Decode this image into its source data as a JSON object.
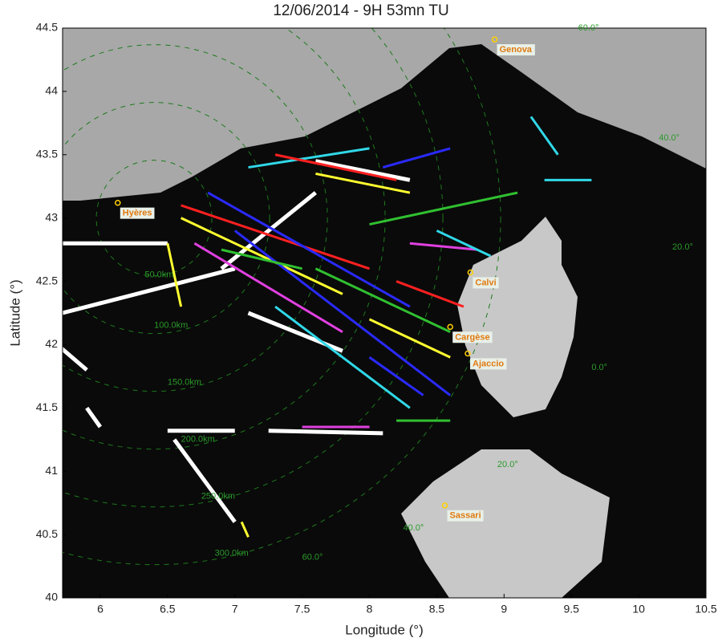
{
  "chart_data": {
    "type": "line",
    "title": "12/06/2014 -  9H 53mn TU",
    "x_label": "Longitude (°)",
    "y_label": "Latitude (°)",
    "xlim": [
      5.72,
      10.5
    ],
    "ylim": [
      40,
      44.5
    ],
    "xticks": [
      6,
      6.5,
      7,
      7.5,
      8,
      8.5,
      9,
      9.5,
      10,
      10.5
    ],
    "yticks": [
      40,
      40.5,
      41,
      41.5,
      42,
      42.5,
      43,
      43.5,
      44,
      44.5
    ],
    "cities": [
      {
        "name": "Genova",
        "x": 8.93,
        "y": 44.41
      },
      {
        "name": "Hyères",
        "x": 6.13,
        "y": 43.12
      },
      {
        "name": "Calvi",
        "x": 8.75,
        "y": 42.57
      },
      {
        "name": "Cargèse",
        "x": 8.6,
        "y": 42.14
      },
      {
        "name": "Ajaccio",
        "x": 8.73,
        "y": 41.93
      },
      {
        "name": "Sassari",
        "x": 8.56,
        "y": 40.73
      }
    ],
    "annotations": [
      {
        "text": "50.0km",
        "x": 6.33,
        "y": 42.55
      },
      {
        "text": "100.0km",
        "x": 6.4,
        "y": 42.15
      },
      {
        "text": "150.0km",
        "x": 6.5,
        "y": 41.7
      },
      {
        "text": "200.0km",
        "x": 6.6,
        "y": 41.25
      },
      {
        "text": "250.0km",
        "x": 6.75,
        "y": 40.8
      },
      {
        "text": "300.0km",
        "x": 6.85,
        "y": 40.35
      },
      {
        "text": "60.0°",
        "x": 7.5,
        "y": 40.32
      },
      {
        "text": "40.0°",
        "x": 8.25,
        "y": 40.55
      },
      {
        "text": "20.0°",
        "x": 8.95,
        "y": 41.05
      },
      {
        "text": "0.0°",
        "x": 9.65,
        "y": 41.82
      },
      {
        "text": "20.0°",
        "x": 10.25,
        "y": 42.77
      },
      {
        "text": "40.0°",
        "x": 10.15,
        "y": 43.63
      },
      {
        "text": "60.0°",
        "x": 9.55,
        "y": 44.5
      }
    ],
    "series": [
      {
        "color": "#ffffff",
        "x": [
          5.72,
          6.5
        ],
        "y": [
          42.8,
          42.8
        ]
      },
      {
        "color": "#ffffff",
        "x": [
          5.72,
          7.0
        ],
        "y": [
          42.25,
          42.6
        ]
      },
      {
        "color": "#ffffff",
        "x": [
          6.5,
          7.0
        ],
        "y": [
          41.32,
          41.32
        ]
      },
      {
        "color": "#ffffff",
        "x": [
          7.25,
          8.1
        ],
        "y": [
          41.32,
          41.3
        ]
      },
      {
        "color": "#ffffff",
        "x": [
          6.55,
          7.0
        ],
        "y": [
          41.25,
          40.6
        ]
      },
      {
        "color": "#ffffff",
        "x": [
          7.1,
          7.8
        ],
        "y": [
          42.25,
          41.95
        ]
      },
      {
        "color": "#ffffff",
        "x": [
          6.9,
          7.6
        ],
        "y": [
          42.6,
          43.2
        ]
      },
      {
        "color": "#ffffff",
        "x": [
          7.6,
          8.3
        ],
        "y": [
          43.45,
          43.3
        ]
      },
      {
        "color": "#ffffff",
        "x": [
          5.9,
          6.0
        ],
        "y": [
          41.5,
          41.35
        ]
      },
      {
        "color": "#ffffff",
        "x": [
          5.68,
          5.9
        ],
        "y": [
          42.0,
          41.8
        ]
      },
      {
        "color": "#ff2020",
        "x": [
          6.6,
          8.0
        ],
        "y": [
          43.1,
          42.6
        ]
      },
      {
        "color": "#2a2aff",
        "x": [
          6.8,
          8.3
        ],
        "y": [
          43.2,
          42.3
        ]
      },
      {
        "color": "#ffff30",
        "x": [
          6.6,
          7.8
        ],
        "y": [
          43.0,
          42.4
        ]
      },
      {
        "color": "#30d8e8",
        "x": [
          7.1,
          8.0
        ],
        "y": [
          43.4,
          43.55
        ]
      },
      {
        "color": "#30c030",
        "x": [
          8.0,
          9.1
        ],
        "y": [
          42.95,
          43.2
        ]
      },
      {
        "color": "#e040e0",
        "x": [
          6.7,
          7.8
        ],
        "y": [
          42.8,
          42.1
        ]
      },
      {
        "color": "#2a2aff",
        "x": [
          7.0,
          8.6
        ],
        "y": [
          42.9,
          41.6
        ]
      },
      {
        "color": "#30d8e8",
        "x": [
          7.3,
          8.3
        ],
        "y": [
          42.3,
          41.5
        ]
      },
      {
        "color": "#ffff30",
        "x": [
          6.5,
          6.6
        ],
        "y": [
          42.8,
          42.3
        ]
      },
      {
        "color": "#30c030",
        "x": [
          7.6,
          8.6
        ],
        "y": [
          42.6,
          42.1
        ]
      },
      {
        "color": "#2a2aff",
        "x": [
          8.1,
          8.6
        ],
        "y": [
          43.4,
          43.55
        ]
      },
      {
        "color": "#ff2020",
        "x": [
          7.3,
          8.2
        ],
        "y": [
          43.5,
          43.3
        ]
      },
      {
        "color": "#30d8e8",
        "x": [
          9.2,
          9.4
        ],
        "y": [
          43.8,
          43.5
        ]
      },
      {
        "color": "#30d8e8",
        "x": [
          9.3,
          9.65
        ],
        "y": [
          43.3,
          43.3
        ]
      },
      {
        "color": "#ffff30",
        "x": [
          8.0,
          8.6
        ],
        "y": [
          42.2,
          41.9
        ]
      },
      {
        "color": "#e040e0",
        "x": [
          7.5,
          8.0
        ],
        "y": [
          41.35,
          41.35
        ]
      },
      {
        "color": "#30c030",
        "x": [
          8.2,
          8.6
        ],
        "y": [
          41.4,
          41.4
        ]
      },
      {
        "color": "#ffff30",
        "x": [
          7.05,
          7.1
        ],
        "y": [
          40.6,
          40.48
        ]
      },
      {
        "color": "#e040e0",
        "x": [
          8.3,
          8.8
        ],
        "y": [
          42.8,
          42.75
        ]
      },
      {
        "color": "#30d8e8",
        "x": [
          8.5,
          8.9
        ],
        "y": [
          42.9,
          42.7
        ]
      },
      {
        "color": "#ff2020",
        "x": [
          8.2,
          8.7
        ],
        "y": [
          42.5,
          42.3
        ]
      },
      {
        "color": "#2a2aff",
        "x": [
          8.0,
          8.4
        ],
        "y": [
          41.9,
          41.6
        ]
      },
      {
        "color": "#30c030",
        "x": [
          6.9,
          7.5
        ],
        "y": [
          42.75,
          42.6
        ]
      },
      {
        "color": "#ffff30",
        "x": [
          7.6,
          8.3
        ],
        "y": [
          43.35,
          43.2
        ]
      }
    ]
  }
}
